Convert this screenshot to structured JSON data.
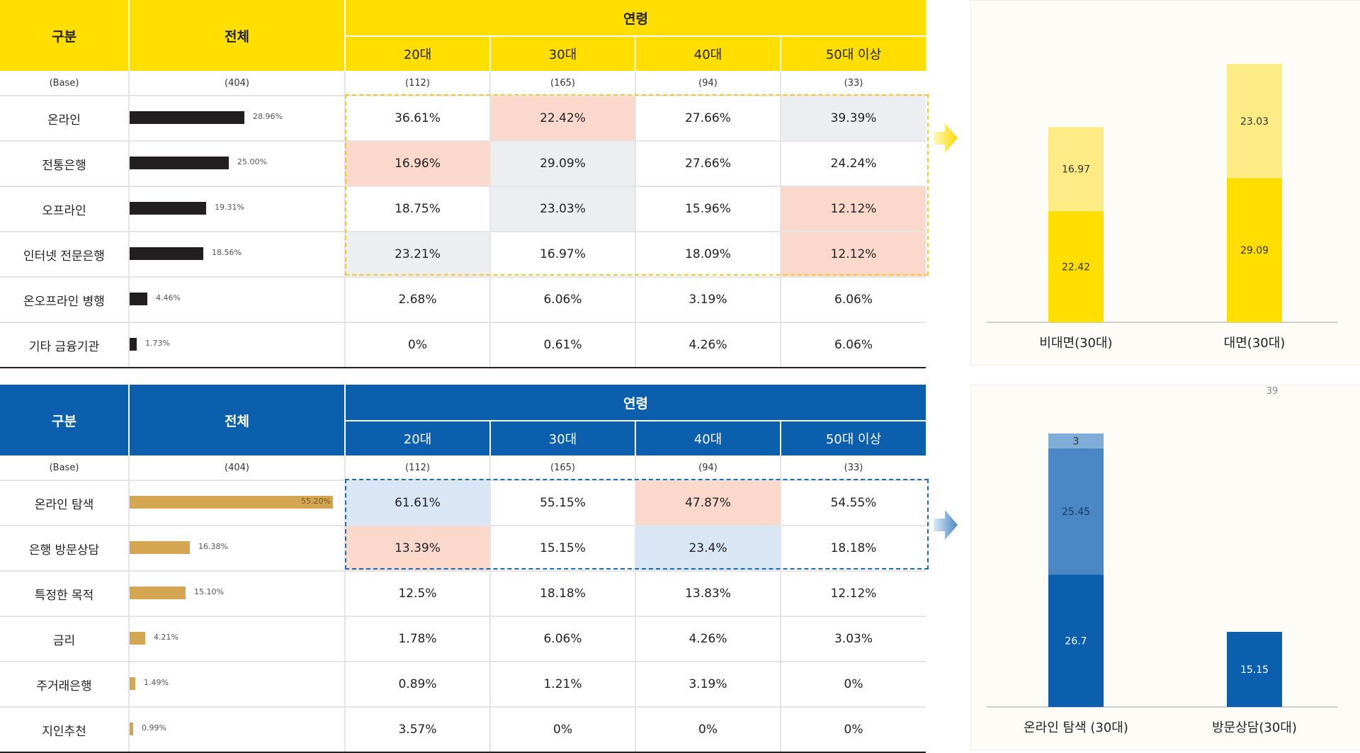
{
  "tables": [
    {
      "header": {
        "col0": "구분",
        "col1": "전체",
        "group": "연령",
        "ages": [
          "20대",
          "30대",
          "40대",
          "50대 이상"
        ]
      },
      "base": {
        "label": "(Base)",
        "total": "(404)",
        "ages": [
          "(112)",
          "(165)",
          "(94)",
          "(33)"
        ]
      },
      "rows": [
        {
          "label": "온라인",
          "total": "28.96%",
          "total_value": 28.96,
          "cells": [
            "36.61%",
            "22.42%",
            "27.66%",
            "39.39%"
          ],
          "hl": [
            "",
            "pink",
            "",
            "grey"
          ]
        },
        {
          "label": "전통은행",
          "total": "25.00%",
          "total_value": 25.0,
          "cells": [
            "16.96%",
            "29.09%",
            "27.66%",
            "24.24%"
          ],
          "hl": [
            "pink",
            "grey",
            "",
            ""
          ]
        },
        {
          "label": "오프라인",
          "total": "19.31%",
          "total_value": 19.31,
          "cells": [
            "18.75%",
            "23.03%",
            "15.96%",
            "12.12%"
          ],
          "hl": [
            "",
            "grey",
            "",
            "pink"
          ]
        },
        {
          "label": "인터넷 전문은행",
          "total": "18.56%",
          "total_value": 18.56,
          "cells": [
            "23.21%",
            "16.97%",
            "18.09%",
            "12.12%"
          ],
          "hl": [
            "grey",
            "",
            "",
            "pink"
          ]
        },
        {
          "label": "온오프라인 병행",
          "total": "4.46%",
          "total_value": 4.46,
          "cells": [
            "2.68%",
            "6.06%",
            "3.19%",
            "6.06%"
          ],
          "hl": [
            "",
            "",
            "",
            ""
          ]
        },
        {
          "label": "기타 금융기관",
          "total": "1.73%",
          "total_value": 1.73,
          "cells": [
            "0%",
            "0.61%",
            "4.26%",
            "6.06%"
          ],
          "hl": [
            "",
            "",
            "",
            ""
          ]
        }
      ]
    },
    {
      "header": {
        "col0": "구분",
        "col1": "전체",
        "group": "연령",
        "ages": [
          "20대",
          "30대",
          "40대",
          "50대 이상"
        ]
      },
      "base": {
        "label": "(Base)",
        "total": "(404)",
        "ages": [
          "(112)",
          "(165)",
          "(94)",
          "(33)"
        ]
      },
      "rows": [
        {
          "label": "온라인 탐색",
          "total": "55.20%",
          "total_value": 55.2,
          "cells": [
            "61.61%",
            "55.15%",
            "47.87%",
            "54.55%"
          ],
          "hl": [
            "ltblue",
            "",
            "pink",
            ""
          ]
        },
        {
          "label": "은행 방문상담",
          "total": "16.38%",
          "total_value": 16.38,
          "cells": [
            "13.39%",
            "15.15%",
            "23.4%",
            "18.18%"
          ],
          "hl": [
            "pink",
            "",
            "ltblue",
            ""
          ]
        },
        {
          "label": "특정한 목적",
          "total": "15.10%",
          "total_value": 15.1,
          "cells": [
            "12.5%",
            "18.18%",
            "13.83%",
            "12.12%"
          ],
          "hl": [
            "",
            "",
            "",
            ""
          ]
        },
        {
          "label": "금리",
          "total": "4.21%",
          "total_value": 4.21,
          "cells": [
            "1.78%",
            "6.06%",
            "4.26%",
            "3.03%"
          ],
          "hl": [
            "",
            "",
            "",
            ""
          ]
        },
        {
          "label": "주거래은행",
          "total": "1.49%",
          "total_value": 1.49,
          "cells": [
            "0.89%",
            "1.21%",
            "3.19%",
            "0%"
          ],
          "hl": [
            "",
            "",
            "",
            ""
          ]
        },
        {
          "label": "지인추천",
          "total": "0.99%",
          "total_value": 0.99,
          "cells": [
            "3.57%",
            "0%",
            "0%",
            "0%"
          ],
          "hl": [
            "",
            "",
            "",
            ""
          ]
        }
      ]
    }
  ],
  "colors": {
    "yellow": "#ffde00",
    "light_yellow": "#fdeb86",
    "dark_bar": "#231f20",
    "navy": "#0b5fad",
    "mid_blue": "#4a87c4",
    "light_blue": "#80acd8",
    "gold_bar": "#d4a652"
  },
  "chart_data": [
    {
      "type": "bar",
      "stacked": true,
      "categories": [
        "비대면(30대)",
        "대면(30대)"
      ],
      "series": [
        {
          "name": "base",
          "color": "#ffde00",
          "values": [
            22.42,
            29.09
          ],
          "labels": [
            "22.42",
            "29.09"
          ]
        },
        {
          "name": "top",
          "color": "#fdeb86",
          "values": [
            16.97,
            23.03
          ],
          "labels": [
            "16.97",
            "23.03"
          ]
        }
      ],
      "ylim": [
        0,
        60
      ]
    },
    {
      "type": "bar",
      "stacked": true,
      "categories": [
        "온라인 탐색 (30대)",
        "방문상담(30대)"
      ],
      "series": [
        {
          "name": "base",
          "color": "#0b5fad",
          "values": [
            26.7,
            15.15
          ],
          "labels": [
            "26.7",
            "15.15"
          ]
        },
        {
          "name": "mid",
          "color": "#4a87c4",
          "values": [
            25.45,
            0
          ],
          "labels": [
            "25.45",
            ""
          ]
        },
        {
          "name": "top",
          "color": "#80acd8",
          "values": [
            3,
            0
          ],
          "labels": [
            "3",
            ""
          ]
        }
      ],
      "annotation": "39",
      "ylim": [
        0,
        60
      ]
    }
  ]
}
